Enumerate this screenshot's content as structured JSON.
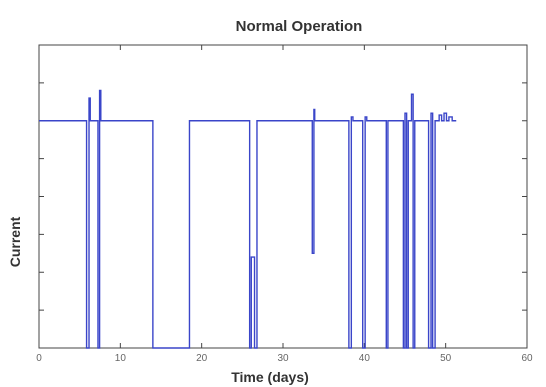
{
  "chart_data": {
    "type": "line",
    "title": "Normal Operation",
    "xlabel": "Time (days)",
    "ylabel": "Current",
    "xlim": [
      0,
      60
    ],
    "ylim": [
      0,
      8
    ],
    "x_ticks": [
      "0",
      "10",
      "20",
      "30",
      "40",
      "50",
      "60"
    ],
    "grid": false,
    "legend": "none",
    "colors": {
      "series": "#3a45c9",
      "axes": "#444444"
    },
    "series": [
      {
        "values": [
          [
            0,
            6.0
          ],
          [
            5.85,
            6.0
          ],
          [
            5.85,
            0
          ],
          [
            6.15,
            0
          ],
          [
            6.15,
            6.6
          ],
          [
            6.3,
            6.6
          ],
          [
            6.3,
            6.0
          ],
          [
            7.25,
            6.0
          ],
          [
            7.25,
            0
          ],
          [
            7.45,
            0
          ],
          [
            7.45,
            6.8
          ],
          [
            7.6,
            6.8
          ],
          [
            7.6,
            6.0
          ],
          [
            14.0,
            6.0
          ],
          [
            14.0,
            0
          ],
          [
            18.5,
            0
          ],
          [
            18.5,
            6.0
          ],
          [
            25.9,
            6.0
          ],
          [
            25.9,
            0
          ],
          [
            26.1,
            0
          ],
          [
            26.1,
            2.4
          ],
          [
            26.5,
            2.4
          ],
          [
            26.5,
            0
          ],
          [
            26.8,
            0
          ],
          [
            26.8,
            6.0
          ],
          [
            33.6,
            6.0
          ],
          [
            33.6,
            2.5
          ],
          [
            33.8,
            2.5
          ],
          [
            33.8,
            6.3
          ],
          [
            33.9,
            6.3
          ],
          [
            33.9,
            6.0
          ],
          [
            38.1,
            6.0
          ],
          [
            38.1,
            0
          ],
          [
            38.4,
            0
          ],
          [
            38.4,
            6.1
          ],
          [
            38.6,
            6.1
          ],
          [
            38.6,
            6.0
          ],
          [
            39.8,
            6.0
          ],
          [
            39.8,
            0
          ],
          [
            40.1,
            0
          ],
          [
            40.1,
            6.1
          ],
          [
            40.3,
            6.1
          ],
          [
            40.3,
            6.0
          ],
          [
            42.7,
            6.0
          ],
          [
            42.7,
            0
          ],
          [
            42.9,
            0
          ],
          [
            42.9,
            6.0
          ],
          [
            44.8,
            6.0
          ],
          [
            44.8,
            0
          ],
          [
            45.0,
            0
          ],
          [
            45.0,
            6.2
          ],
          [
            45.2,
            6.2
          ],
          [
            45.2,
            0
          ],
          [
            45.4,
            0
          ],
          [
            45.4,
            6.0
          ],
          [
            45.8,
            6.0
          ],
          [
            45.8,
            6.7
          ],
          [
            46.0,
            6.7
          ],
          [
            46.0,
            0
          ],
          [
            46.2,
            0
          ],
          [
            46.2,
            6.0
          ],
          [
            47.9,
            6.0
          ],
          [
            47.9,
            0
          ],
          [
            48.2,
            0
          ],
          [
            48.2,
            6.2
          ],
          [
            48.4,
            6.2
          ],
          [
            48.4,
            0
          ],
          [
            48.7,
            0
          ],
          [
            48.7,
            6.0
          ],
          [
            49.2,
            6.0
          ],
          [
            49.2,
            6.15
          ],
          [
            49.5,
            6.15
          ],
          [
            49.5,
            6.0
          ],
          [
            49.8,
            6.0
          ],
          [
            49.8,
            6.2
          ],
          [
            50.1,
            6.2
          ],
          [
            50.1,
            6.0
          ],
          [
            50.4,
            6.0
          ],
          [
            50.4,
            6.1
          ],
          [
            50.8,
            6.1
          ],
          [
            50.8,
            6.0
          ],
          [
            51.3,
            6.0
          ]
        ]
      }
    ]
  }
}
